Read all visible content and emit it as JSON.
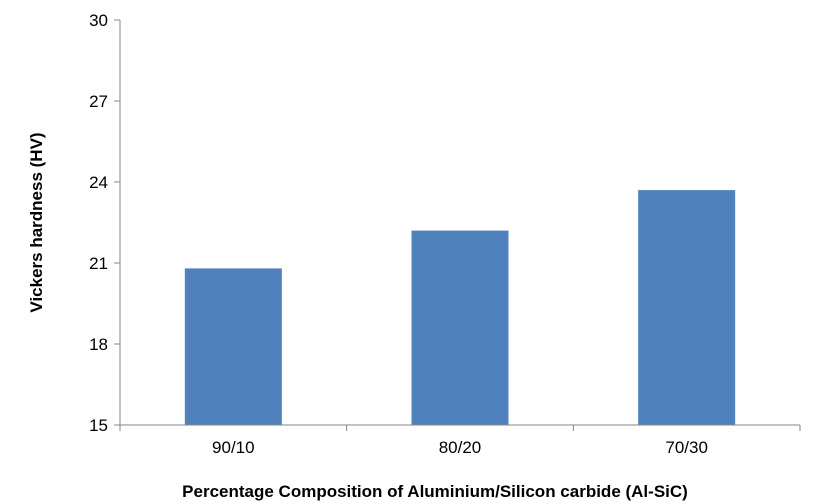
{
  "chart_data": {
    "type": "bar",
    "categories": [
      "90/10",
      "80/20",
      "70/30"
    ],
    "values": [
      20.8,
      22.2,
      23.7
    ],
    "title": "",
    "xlabel": "Percentage Composition of Aluminium/Silicon carbide (Al-SiC)",
    "ylabel": "Vickers hardness (HV)",
    "ylim": [
      15,
      30
    ],
    "yticks": [
      "15",
      "18",
      "21",
      "24",
      "27",
      "30"
    ],
    "grid": false,
    "legend": "none",
    "bar_color": "#4F81BD",
    "axis_color": "#868686"
  }
}
